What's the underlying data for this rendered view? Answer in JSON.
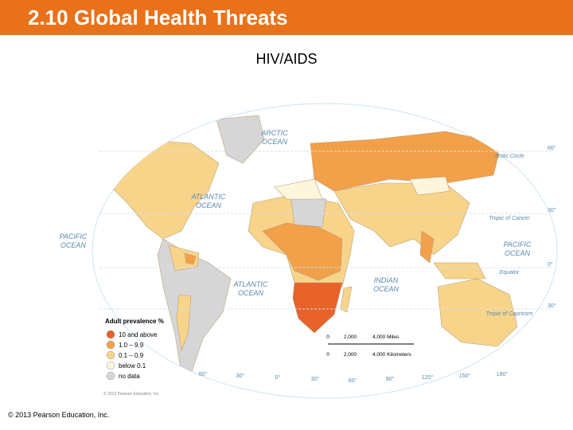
{
  "header": {
    "title": "2.10 Global Health Threats"
  },
  "map": {
    "title": "HIV/AIDS",
    "oceans": [
      {
        "lines": [
          "ARCTIC",
          "OCEAN"
        ]
      },
      {
        "lines": [
          "ATLANTIC",
          "OCEAN"
        ]
      },
      {
        "lines": [
          "PACIFIC",
          "OCEAN"
        ]
      },
      {
        "lines": [
          "ATLANTIC",
          "OCEAN"
        ]
      },
      {
        "lines": [
          "INDIAN",
          "OCEAN"
        ]
      },
      {
        "lines": [
          "PACIFIC",
          "OCEAN"
        ]
      }
    ],
    "parallels": [
      {
        "name": "Arctic Circle",
        "degree": "66°"
      },
      {
        "name": "Tropic of Cancer",
        "degree": "30°"
      },
      {
        "name": "Equator",
        "degree": "0°"
      },
      {
        "name": "Tropic of Capricorn",
        "degree": "30°"
      }
    ],
    "meridians": [
      "60°",
      "30°",
      "0°",
      "30°",
      "60°",
      "90°",
      "120°",
      "150°",
      "180°"
    ],
    "legend": {
      "title": "Adult prevalence %",
      "items": [
        {
          "label": "10 and above",
          "color": "#e8622a"
        },
        {
          "label": "1.0 – 9.9",
          "color": "#f2a04a"
        },
        {
          "label": "0.1 – 0.9",
          "color": "#f8d48a"
        },
        {
          "label": "below 0.1",
          "color": "#fdf6dc"
        },
        {
          "label": "no data",
          "color": "#d6d6d6"
        }
      ]
    },
    "scale": {
      "miles": [
        "0",
        "2,000",
        "4,000 Miles"
      ],
      "kilometers": [
        "0",
        "2,000",
        "4,000 Kilometers"
      ]
    },
    "credit": "© 2013 Pearson Education, Inc."
  },
  "footer": {
    "copyright": "© 2013 Pearson Education, Inc."
  }
}
